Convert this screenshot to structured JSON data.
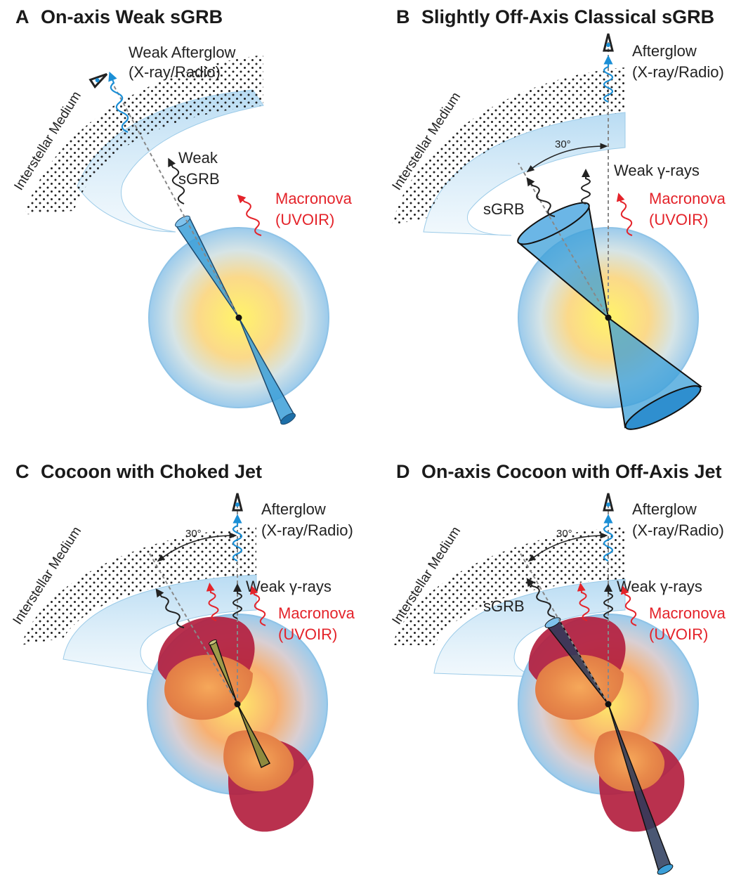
{
  "panels": {
    "a": {
      "letter": "A",
      "title": "On-axis Weak sGRB",
      "afterglow_line1": "Weak Afterglow",
      "afterglow_line2": "(X-ray/Radio)",
      "medium": "Interstellar Medium",
      "grb_line1": "Weak",
      "grb_line2": "sGRB",
      "macronova_line1": "Macronova",
      "macronova_line2": "(UVOIR)"
    },
    "b": {
      "letter": "B",
      "title": "Slightly Off-Axis Classical sGRB",
      "afterglow_line1": "Afterglow",
      "afterglow_line2": "(X-ray/Radio)",
      "medium": "Interstellar Medium",
      "angle": "30°",
      "gamma": "Weak γ-rays",
      "grb": "sGRB",
      "macronova_line1": "Macronova",
      "macronova_line2": "(UVOIR)"
    },
    "c": {
      "letter": "C",
      "title": "Cocoon with Choked Jet",
      "afterglow_line1": "Afterglow",
      "afterglow_line2": "(X-ray/Radio)",
      "medium": "Interstellar Medium",
      "angle": "30°",
      "gamma": "Weak γ-rays",
      "macronova_line1": "Macronova",
      "macronova_line2": "(UVOIR)"
    },
    "d": {
      "letter": "D",
      "title": "On-axis Cocoon with Off-Axis Jet",
      "afterglow_line1": "Afterglow",
      "afterglow_line2": "(X-ray/Radio)",
      "medium": "Interstellar Medium",
      "angle": "30°",
      "gamma": "Weak γ-rays",
      "grb": "sGRB",
      "macronova_line1": "Macronova",
      "macronova_line2": "(UVOIR)"
    }
  },
  "colors": {
    "sphere_center": "#fff06a",
    "sphere_mid": "#f7c886",
    "sphere_edge": "#a9d3ee",
    "jet": "#3b9fd8",
    "afterglow": "#1b8fd6",
    "macronova": "#e4232a",
    "cocoon": "#b3203f",
    "shell": "#cfe7f7"
  }
}
